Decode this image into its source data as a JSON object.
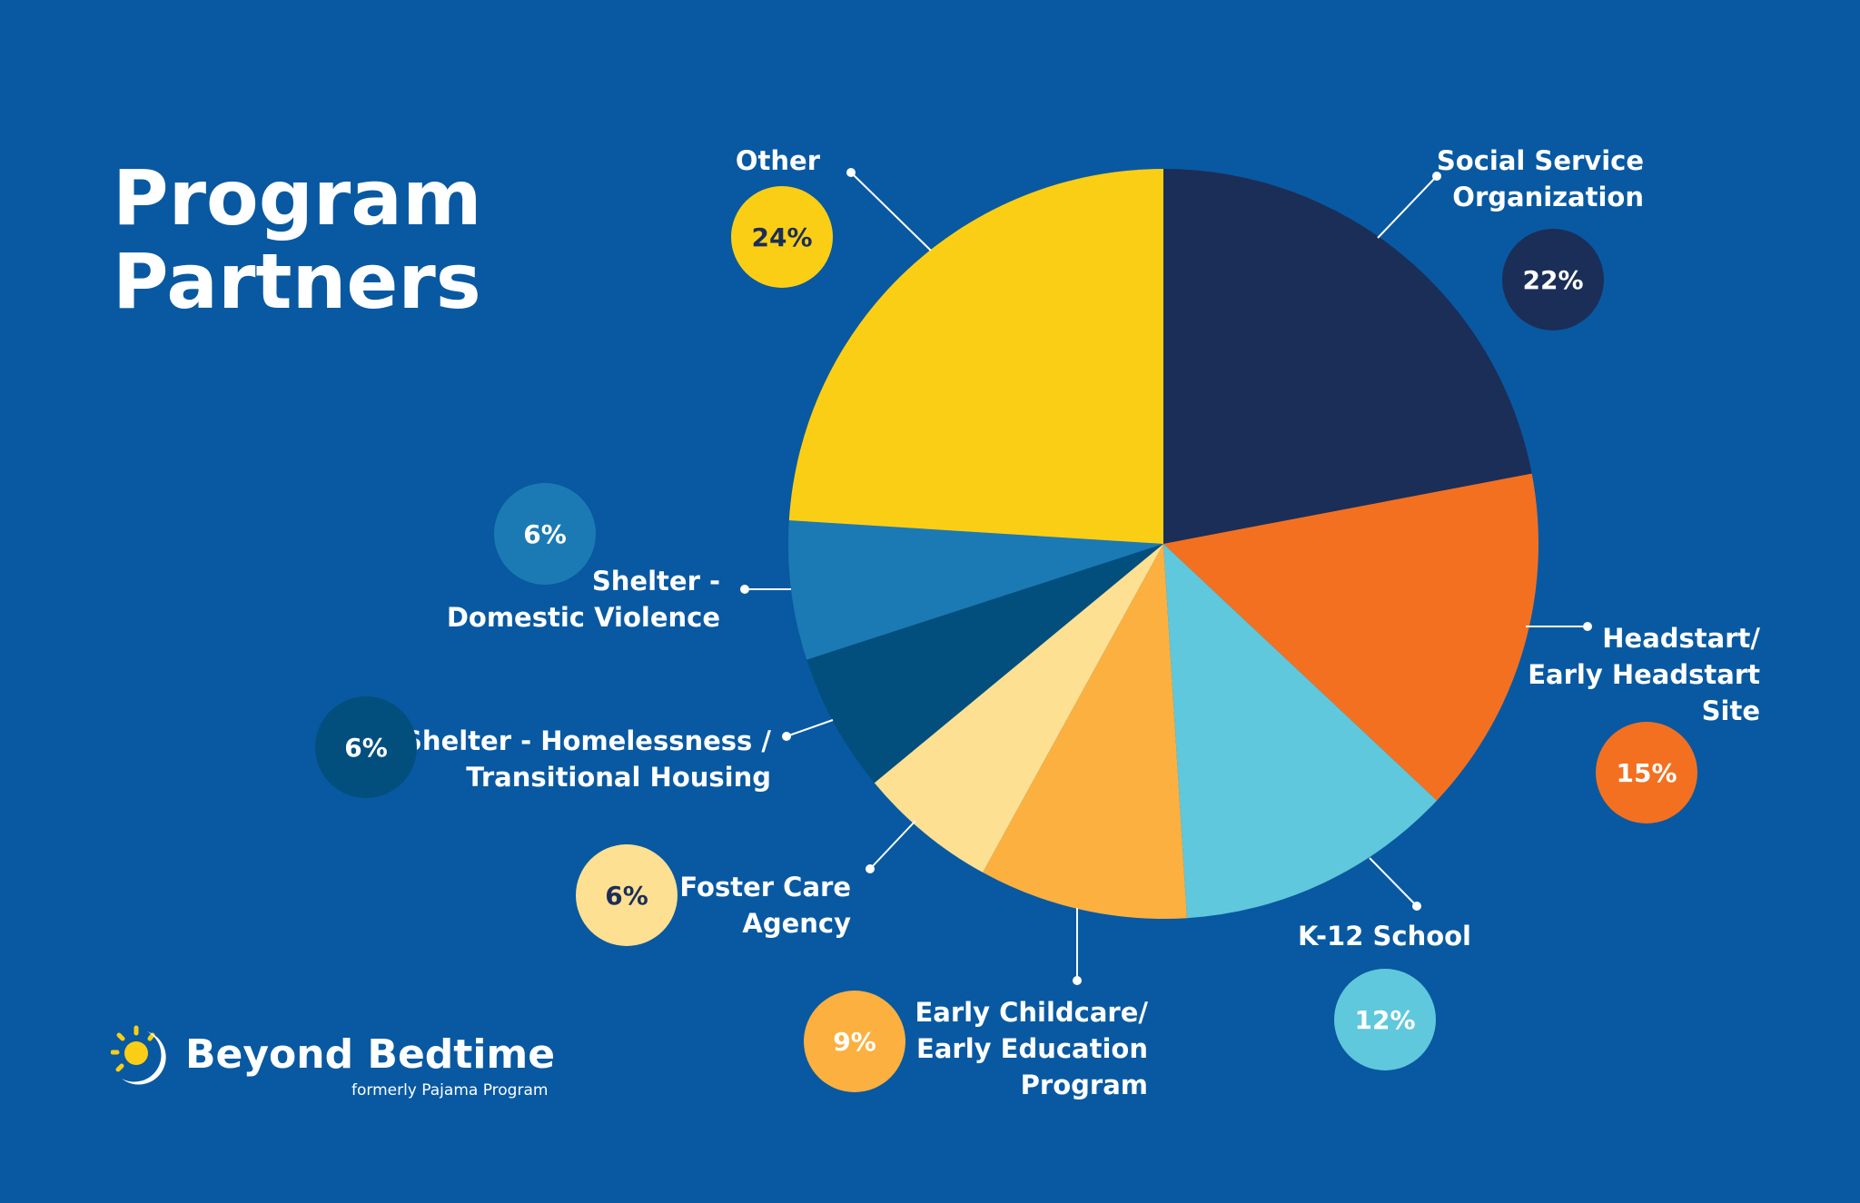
{
  "title": [
    "Program",
    "Partners"
  ],
  "brand": {
    "name": "Beyond Bedtime",
    "tagline": "formerly Pajama Program",
    "logo_icon": "sun-moon-icon"
  },
  "colors": {
    "background": "#0859a1",
    "text": "#ffffff"
  },
  "chart_data": {
    "type": "pie",
    "title": "Program Partners",
    "start": "12 o'clock, clockwise",
    "slices": [
      {
        "label": "Social Service Organization",
        "lines": [
          "Social Service",
          "Organization"
        ],
        "value": 22,
        "display": "22%",
        "color": "#1b2e58",
        "label_text_color": "#ffffff"
      },
      {
        "label": "Headstart/ Early Headstart Site",
        "lines": [
          "Headstart/",
          "Early Headstart",
          "Site"
        ],
        "value": 15,
        "display": "15%",
        "color": "#f37021",
        "label_text_color": "#ffffff"
      },
      {
        "label": "K-12 School",
        "lines": [
          "K-12 School"
        ],
        "value": 12,
        "display": "12%",
        "color": "#5fc8dc",
        "label_text_color": "#ffffff"
      },
      {
        "label": "Early Childcare/ Early Education Program",
        "lines": [
          "Early Childcare/",
          "Early Education",
          "Program"
        ],
        "value": 9,
        "display": "9%",
        "color": "#fbb040",
        "label_text_color": "#ffffff"
      },
      {
        "label": "Foster Care Agency",
        "lines": [
          "Foster Care",
          "Agency"
        ],
        "value": 6,
        "display": "6%",
        "color": "#fde092",
        "label_text_color": "#1b2e58"
      },
      {
        "label": "Shelter - Homelessness / Transitional Housing",
        "lines": [
          "Shelter - Homelessness /",
          "Transitional Housing"
        ],
        "value": 6,
        "display": "6%",
        "color": "#024f7e",
        "label_text_color": "#ffffff"
      },
      {
        "label": "Shelter - Domestic Violence",
        "lines": [
          "Shelter -",
          "Domestic Violence"
        ],
        "value": 6,
        "display": "6%",
        "color": "#1b7ab3",
        "label_text_color": "#ffffff"
      },
      {
        "label": "Other",
        "lines": [
          "Other"
        ],
        "value": 24,
        "display": "24%",
        "color": "#fbce16",
        "label_text_color": "#1b2e58"
      }
    ]
  }
}
